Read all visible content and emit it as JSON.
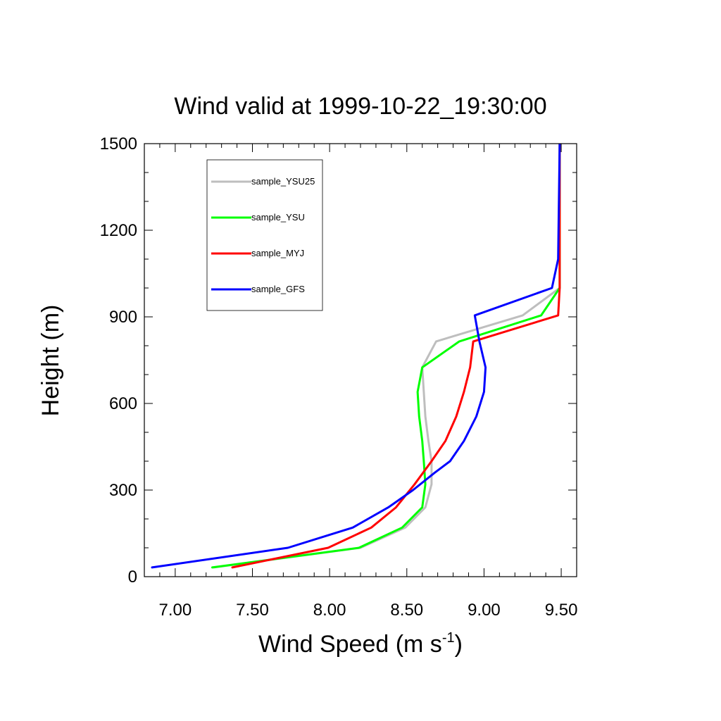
{
  "chart_data": {
    "type": "line",
    "title": "Wind valid at 1999-10-22_19:30:00",
    "xlabel": "Wind Speed (m s",
    "xlabel_superscript": "-1",
    "xlabel_suffix": ")",
    "ylabel": "Height (m)",
    "xlim": [
      6.8,
      9.6
    ],
    "ylim": [
      0,
      1500
    ],
    "x_ticks": [
      7.0,
      7.5,
      8.0,
      8.5,
      9.0,
      9.5
    ],
    "x_tick_labels": [
      "7.00",
      "7.50",
      "8.00",
      "8.50",
      "9.00",
      "9.50"
    ],
    "x_minor_step": 0.1,
    "y_ticks": [
      0,
      300,
      600,
      900,
      1200,
      1500
    ],
    "y_tick_labels": [
      "0",
      "300",
      "600",
      "900",
      "1200",
      "1500"
    ],
    "y_minor_step": 100,
    "grid": false,
    "legend_position": "top-left",
    "series": [
      {
        "name": "sample_YSU25",
        "color": "#bebebe",
        "points": [
          [
            7.25,
            32
          ],
          [
            8.2,
            100
          ],
          [
            8.49,
            170
          ],
          [
            8.62,
            240
          ],
          [
            8.66,
            320
          ],
          [
            8.66,
            400
          ],
          [
            8.64,
            470
          ],
          [
            8.62,
            555
          ],
          [
            8.61,
            640
          ],
          [
            8.6,
            725
          ],
          [
            8.69,
            815
          ],
          [
            9.25,
            905
          ],
          [
            9.49,
            1000
          ],
          [
            9.49,
            1500
          ]
        ]
      },
      {
        "name": "sample_YSU",
        "color": "#00ff00",
        "points": [
          [
            7.24,
            32
          ],
          [
            8.19,
            100
          ],
          [
            8.47,
            170
          ],
          [
            8.6,
            240
          ],
          [
            8.62,
            320
          ],
          [
            8.61,
            400
          ],
          [
            8.6,
            470
          ],
          [
            8.58,
            555
          ],
          [
            8.57,
            640
          ],
          [
            8.6,
            725
          ],
          [
            8.84,
            815
          ],
          [
            9.37,
            905
          ],
          [
            9.49,
            1000
          ],
          [
            9.49,
            1500
          ]
        ]
      },
      {
        "name": "sample_MYJ",
        "color": "#ff0000",
        "points": [
          [
            7.37,
            32
          ],
          [
            7.99,
            100
          ],
          [
            8.27,
            170
          ],
          [
            8.43,
            240
          ],
          [
            8.55,
            320
          ],
          [
            8.66,
            400
          ],
          [
            8.75,
            470
          ],
          [
            8.82,
            555
          ],
          [
            8.87,
            640
          ],
          [
            8.91,
            725
          ],
          [
            8.93,
            815
          ],
          [
            9.48,
            905
          ],
          [
            9.49,
            1000
          ],
          [
            9.49,
            1500
          ]
        ]
      },
      {
        "name": "sample_GFS",
        "color": "#0000ff",
        "points": [
          [
            6.85,
            32
          ],
          [
            7.73,
            100
          ],
          [
            8.15,
            170
          ],
          [
            8.38,
            240
          ],
          [
            8.54,
            300
          ],
          [
            8.68,
            360
          ],
          [
            8.78,
            400
          ],
          [
            8.87,
            470
          ],
          [
            8.95,
            555
          ],
          [
            9.0,
            640
          ],
          [
            9.01,
            725
          ],
          [
            8.97,
            815
          ],
          [
            8.94,
            905
          ],
          [
            9.44,
            1000
          ],
          [
            9.48,
            1100
          ],
          [
            9.49,
            1500
          ]
        ]
      }
    ]
  }
}
